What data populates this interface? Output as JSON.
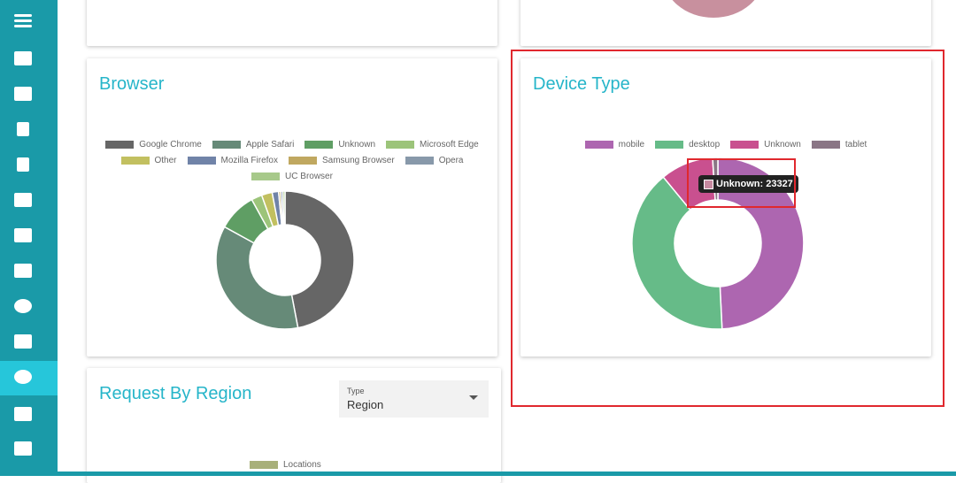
{
  "chart_data": [
    {
      "type": "doughnut",
      "title": "Browser",
      "categories": [
        "Google Chrome",
        "Apple Safari",
        "Unknown",
        "Microsoft Edge",
        "Other",
        "Mozilla Firefox",
        "Samsung Browser",
        "Opera",
        "UC Browser"
      ],
      "values": [
        47,
        36,
        9,
        2.5,
        2.5,
        1.5,
        0.5,
        0.5,
        0.5
      ],
      "colors": [
        "#666666",
        "#668a78",
        "#5f9e64",
        "#9cc47a",
        "#c2c060",
        "#7083a8",
        "#c0a860",
        "#8899aa",
        "#a7c98a"
      ]
    },
    {
      "type": "doughnut",
      "title": "Device Type",
      "categories": [
        "mobile",
        "desktop",
        "Unknown",
        "tablet"
      ],
      "values": [
        115000,
        93000,
        23327,
        2300
      ],
      "colors": [
        "#ad66b0",
        "#66bb88",
        "#c9508f",
        "#8a7585"
      ],
      "tooltip": "Unknown: 23327"
    }
  ],
  "region_card": {
    "title": "Request By Region",
    "select": {
      "label": "Type",
      "value": "Region"
    },
    "legend": [
      "Locations"
    ]
  }
}
